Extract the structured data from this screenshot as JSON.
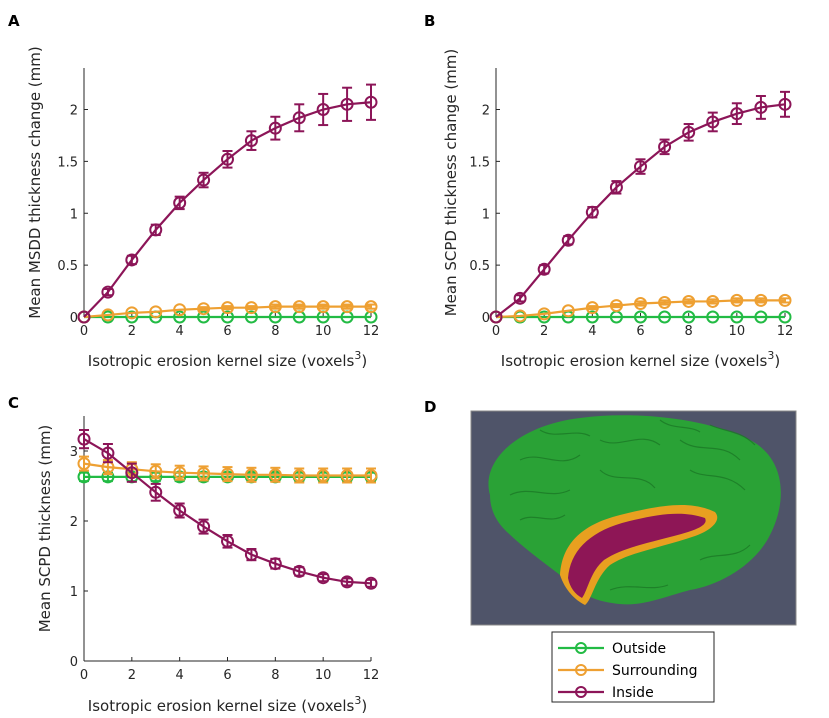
{
  "colors": {
    "outside": "#22bb44",
    "surrounding": "#eea032",
    "inside": "#8c1558",
    "axis": "#262626",
    "brain_background": "#4f5469",
    "brain_green": "#2aa236",
    "brain_orange": "#e8a020",
    "brain_inside": "#8e1656"
  },
  "panel_labels": {
    "a": "A",
    "b": "B",
    "c": "C",
    "d": "D"
  },
  "legend": {
    "entries": [
      "Outside",
      "Surrounding",
      "Inside"
    ]
  },
  "chart_data": [
    {
      "panel": "A",
      "type": "line",
      "xlabel": "Isotropic erosion kernel size (voxels",
      "xlabel_sup": "3",
      "xlabel_close": ")",
      "ylabel": "Mean MSDD thickness change (mm)",
      "xlim": [
        0,
        12
      ],
      "ylim": [
        0,
        2.4
      ],
      "xticks": [
        0,
        2,
        4,
        6,
        8,
        10,
        12
      ],
      "yticks": [
        0,
        0.5,
        1,
        1.5,
        2
      ],
      "ytick_labels": [
        "0",
        "0.5",
        "1",
        "1.5",
        "2"
      ],
      "x": [
        0,
        1,
        2,
        3,
        4,
        5,
        6,
        7,
        8,
        9,
        10,
        11,
        12
      ],
      "series": [
        {
          "name": "Outside",
          "values": [
            0,
            0,
            0,
            0,
            0,
            0,
            0,
            0,
            0,
            0,
            0,
            0,
            0
          ],
          "errors": [
            0.01,
            0.01,
            0.01,
            0.01,
            0.01,
            0.01,
            0.01,
            0.01,
            0.01,
            0.01,
            0.01,
            0.01,
            0.01
          ]
        },
        {
          "name": "Surrounding",
          "values": [
            0,
            0.02,
            0.04,
            0.05,
            0.07,
            0.08,
            0.09,
            0.09,
            0.1,
            0.1,
            0.1,
            0.1,
            0.1
          ],
          "errors": [
            0.01,
            0.01,
            0.01,
            0.01,
            0.01,
            0.015,
            0.015,
            0.015,
            0.02,
            0.02,
            0.02,
            0.02,
            0.02
          ]
        },
        {
          "name": "Inside",
          "values": [
            0,
            0.24,
            0.55,
            0.84,
            1.1,
            1.32,
            1.52,
            1.7,
            1.82,
            1.92,
            2.0,
            2.05,
            2.07
          ],
          "errors": [
            0.01,
            0.03,
            0.04,
            0.05,
            0.06,
            0.07,
            0.08,
            0.09,
            0.11,
            0.13,
            0.15,
            0.16,
            0.17
          ]
        }
      ]
    },
    {
      "panel": "B",
      "type": "line",
      "xlabel": "Isotropic erosion kernel size (voxels",
      "xlabel_sup": "3",
      "xlabel_close": ")",
      "ylabel": "Mean SCPD thickness change (mm)",
      "xlim": [
        0,
        12
      ],
      "ylim": [
        0,
        2.4
      ],
      "xticks": [
        0,
        2,
        4,
        6,
        8,
        10,
        12
      ],
      "yticks": [
        0,
        0.5,
        1,
        1.5,
        2
      ],
      "ytick_labels": [
        "0",
        "0.5",
        "1",
        "1.5",
        "2"
      ],
      "x": [
        0,
        1,
        2,
        3,
        4,
        5,
        6,
        7,
        8,
        9,
        10,
        11,
        12
      ],
      "series": [
        {
          "name": "Outside",
          "values": [
            0,
            0,
            0,
            0,
            0,
            0,
            0,
            0,
            0,
            0,
            0,
            0,
            0
          ],
          "errors": [
            0.01,
            0.01,
            0.01,
            0.01,
            0.01,
            0.01,
            0.01,
            0.01,
            0.01,
            0.01,
            0.01,
            0.01,
            0.01
          ]
        },
        {
          "name": "Surrounding",
          "values": [
            0,
            0.01,
            0.03,
            0.06,
            0.09,
            0.11,
            0.13,
            0.14,
            0.15,
            0.15,
            0.16,
            0.16,
            0.16
          ],
          "errors": [
            0.01,
            0.01,
            0.01,
            0.01,
            0.015,
            0.015,
            0.02,
            0.02,
            0.02,
            0.02,
            0.02,
            0.02,
            0.02
          ]
        },
        {
          "name": "Inside",
          "values": [
            0,
            0.18,
            0.46,
            0.74,
            1.01,
            1.25,
            1.45,
            1.64,
            1.78,
            1.88,
            1.96,
            2.02,
            2.05
          ],
          "errors": [
            0.01,
            0.03,
            0.04,
            0.04,
            0.05,
            0.06,
            0.07,
            0.07,
            0.08,
            0.09,
            0.1,
            0.11,
            0.12
          ]
        }
      ]
    },
    {
      "panel": "C",
      "type": "line",
      "xlabel": "Isotropic erosion kernel size (voxels",
      "xlabel_sup": "3",
      "xlabel_close": ")",
      "ylabel": "Mean SCPD thickness (mm)",
      "xlim": [
        0,
        12
      ],
      "ylim": [
        0,
        3.5
      ],
      "xticks": [
        0,
        2,
        4,
        6,
        8,
        10,
        12
      ],
      "yticks": [
        0,
        1,
        2,
        3
      ],
      "ytick_labels": [
        "0",
        "1",
        "2",
        "3"
      ],
      "x": [
        0,
        1,
        2,
        3,
        4,
        5,
        6,
        7,
        8,
        9,
        10,
        11,
        12
      ],
      "series": [
        {
          "name": "Outside",
          "values": [
            2.63,
            2.63,
            2.63,
            2.63,
            2.63,
            2.63,
            2.63,
            2.63,
            2.63,
            2.63,
            2.63,
            2.63,
            2.63
          ],
          "errors": [
            0.06,
            0.06,
            0.06,
            0.06,
            0.06,
            0.06,
            0.06,
            0.06,
            0.06,
            0.06,
            0.06,
            0.06,
            0.06
          ]
        },
        {
          "name": "Surrounding",
          "values": [
            2.82,
            2.77,
            2.74,
            2.71,
            2.69,
            2.68,
            2.67,
            2.66,
            2.66,
            2.65,
            2.65,
            2.65,
            2.65
          ],
          "errors": [
            0.1,
            0.1,
            0.1,
            0.1,
            0.1,
            0.1,
            0.1,
            0.1,
            0.1,
            0.1,
            0.1,
            0.1,
            0.1
          ]
        },
        {
          "name": "Inside",
          "values": [
            3.17,
            2.97,
            2.69,
            2.41,
            2.15,
            1.92,
            1.71,
            1.52,
            1.39,
            1.28,
            1.19,
            1.13,
            1.11
          ],
          "errors": [
            0.13,
            0.13,
            0.13,
            0.12,
            0.1,
            0.1,
            0.09,
            0.08,
            0.07,
            0.06,
            0.05,
            0.05,
            0.05
          ]
        }
      ]
    }
  ]
}
